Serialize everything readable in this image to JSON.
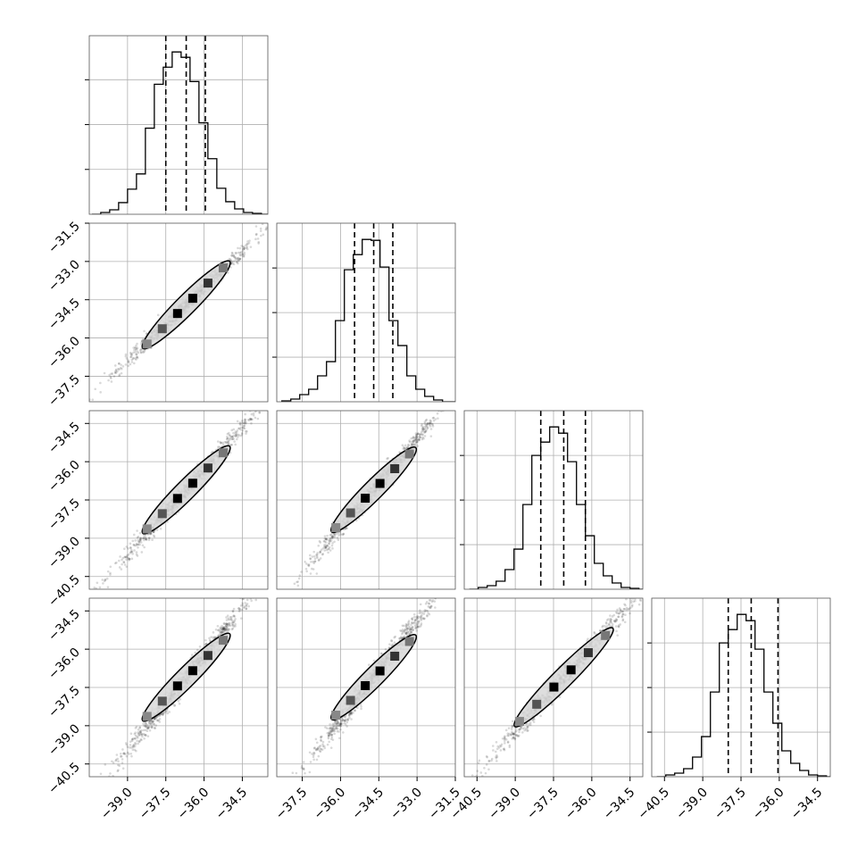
{
  "chart_data": {
    "type": "corner",
    "parameters": 4,
    "grid": true,
    "quantile_lines": "dashed",
    "colors": {
      "ink": "#000000",
      "grid": "#b0b0b0",
      "frame": "#555555",
      "fill": "#d8d8d8"
    },
    "params": [
      {
        "range": [
          -40.5,
          -33.5
        ],
        "ticks": [
          "-39.0",
          "-37.5",
          "-36.0",
          "-34.5"
        ],
        "tick_values": [
          -39.0,
          -37.5,
          -36.0,
          -34.5
        ],
        "quantiles": [
          -37.5,
          -36.7,
          -35.95
        ]
      },
      {
        "range": [
          -38.5,
          -31.5
        ],
        "ticks": [
          "-37.5",
          "-36.0",
          "-34.5",
          "-33.0",
          "-31.5"
        ],
        "tick_values": [
          -37.5,
          -36.0,
          -34.5,
          -33.0,
          -31.5
        ],
        "quantiles": [
          -35.45,
          -34.7,
          -33.95
        ]
      },
      {
        "range": [
          -41.0,
          -34.0
        ],
        "ticks": [
          "-40.5",
          "-39.0",
          "-37.5",
          "-36.0",
          "-34.5"
        ],
        "tick_values": [
          -40.5,
          -39.0,
          -37.5,
          -36.0,
          -34.5
        ],
        "quantiles": [
          -38.0,
          -37.1,
          -36.25
        ]
      },
      {
        "range": [
          -41.0,
          -34.0
        ],
        "ticks": [
          "-40.5",
          "-39.0",
          "-37.5",
          "-36.0",
          "-34.5"
        ],
        "tick_values": [
          -40.5,
          -39.0,
          -37.5,
          -36.0,
          -34.5
        ],
        "quantiles": [
          -38.0,
          -37.1,
          -36.05
        ]
      }
    ],
    "histograms": [
      {
        "edges_start": -40.4,
        "bin_width": 0.35,
        "counts": [
          0,
          2,
          5,
          13,
          28,
          45,
          96,
          145,
          164,
          181,
          175,
          148,
          102,
          62,
          29,
          14,
          6,
          2,
          1,
          0
        ]
      },
      {
        "edges_start": -38.3,
        "bin_width": 0.35,
        "counts": [
          1,
          3,
          8,
          14,
          29,
          45,
          91,
          148,
          165,
          182,
          181,
          151,
          91,
          63,
          29,
          14,
          6,
          2,
          0,
          0
        ]
      },
      {
        "edges_start": -40.8,
        "bin_width": 0.35,
        "counts": [
          0,
          2,
          4,
          9,
          22,
          45,
          95,
          150,
          165,
          182,
          175,
          143,
          95,
          60,
          29,
          15,
          7,
          2,
          1,
          0
        ]
      },
      {
        "edges_start": -40.8,
        "bin_width": 0.35,
        "counts": [
          0,
          2,
          4,
          9,
          22,
          45,
          95,
          150,
          165,
          182,
          175,
          143,
          95,
          60,
          29,
          15,
          7,
          2,
          1,
          0
        ]
      }
    ]
  }
}
